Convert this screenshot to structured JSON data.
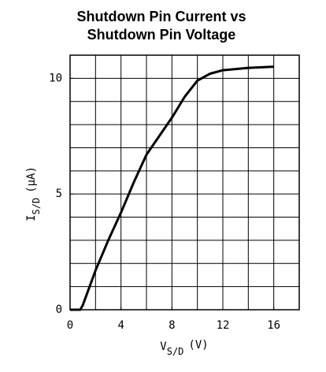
{
  "chart_data": {
    "type": "line",
    "title": [
      "Shutdown Pin Current vs",
      "Shutdown Pin Voltage"
    ],
    "x_label": {
      "main": "V",
      "sub": "S/D",
      "unit": "(V)"
    },
    "y_label": {
      "main": "I",
      "sub": "S/D",
      "unit": "(μA)"
    },
    "x": [
      0,
      0.8,
      1,
      2,
      3,
      4,
      5,
      6,
      7,
      8,
      9,
      10,
      11,
      12,
      14,
      16
    ],
    "series": [
      {
        "color": "#000000",
        "values": [
          0,
          0,
          0.2,
          1.7,
          3.0,
          4.2,
          5.5,
          6.7,
          7.5,
          8.3,
          9.2,
          9.9,
          10.2,
          10.35,
          10.45,
          10.5
        ]
      }
    ],
    "xlim": [
      0,
      18
    ],
    "ylim": [
      0,
      11
    ],
    "xticks": [
      0,
      4,
      8,
      12,
      16
    ],
    "yticks": [
      0,
      5,
      10
    ],
    "xgrid": [
      2,
      4,
      6,
      8,
      10,
      12,
      14,
      16
    ],
    "ygrid": [
      1,
      2,
      3,
      4,
      5,
      6,
      7,
      8,
      9,
      10
    ],
    "grid": true
  }
}
